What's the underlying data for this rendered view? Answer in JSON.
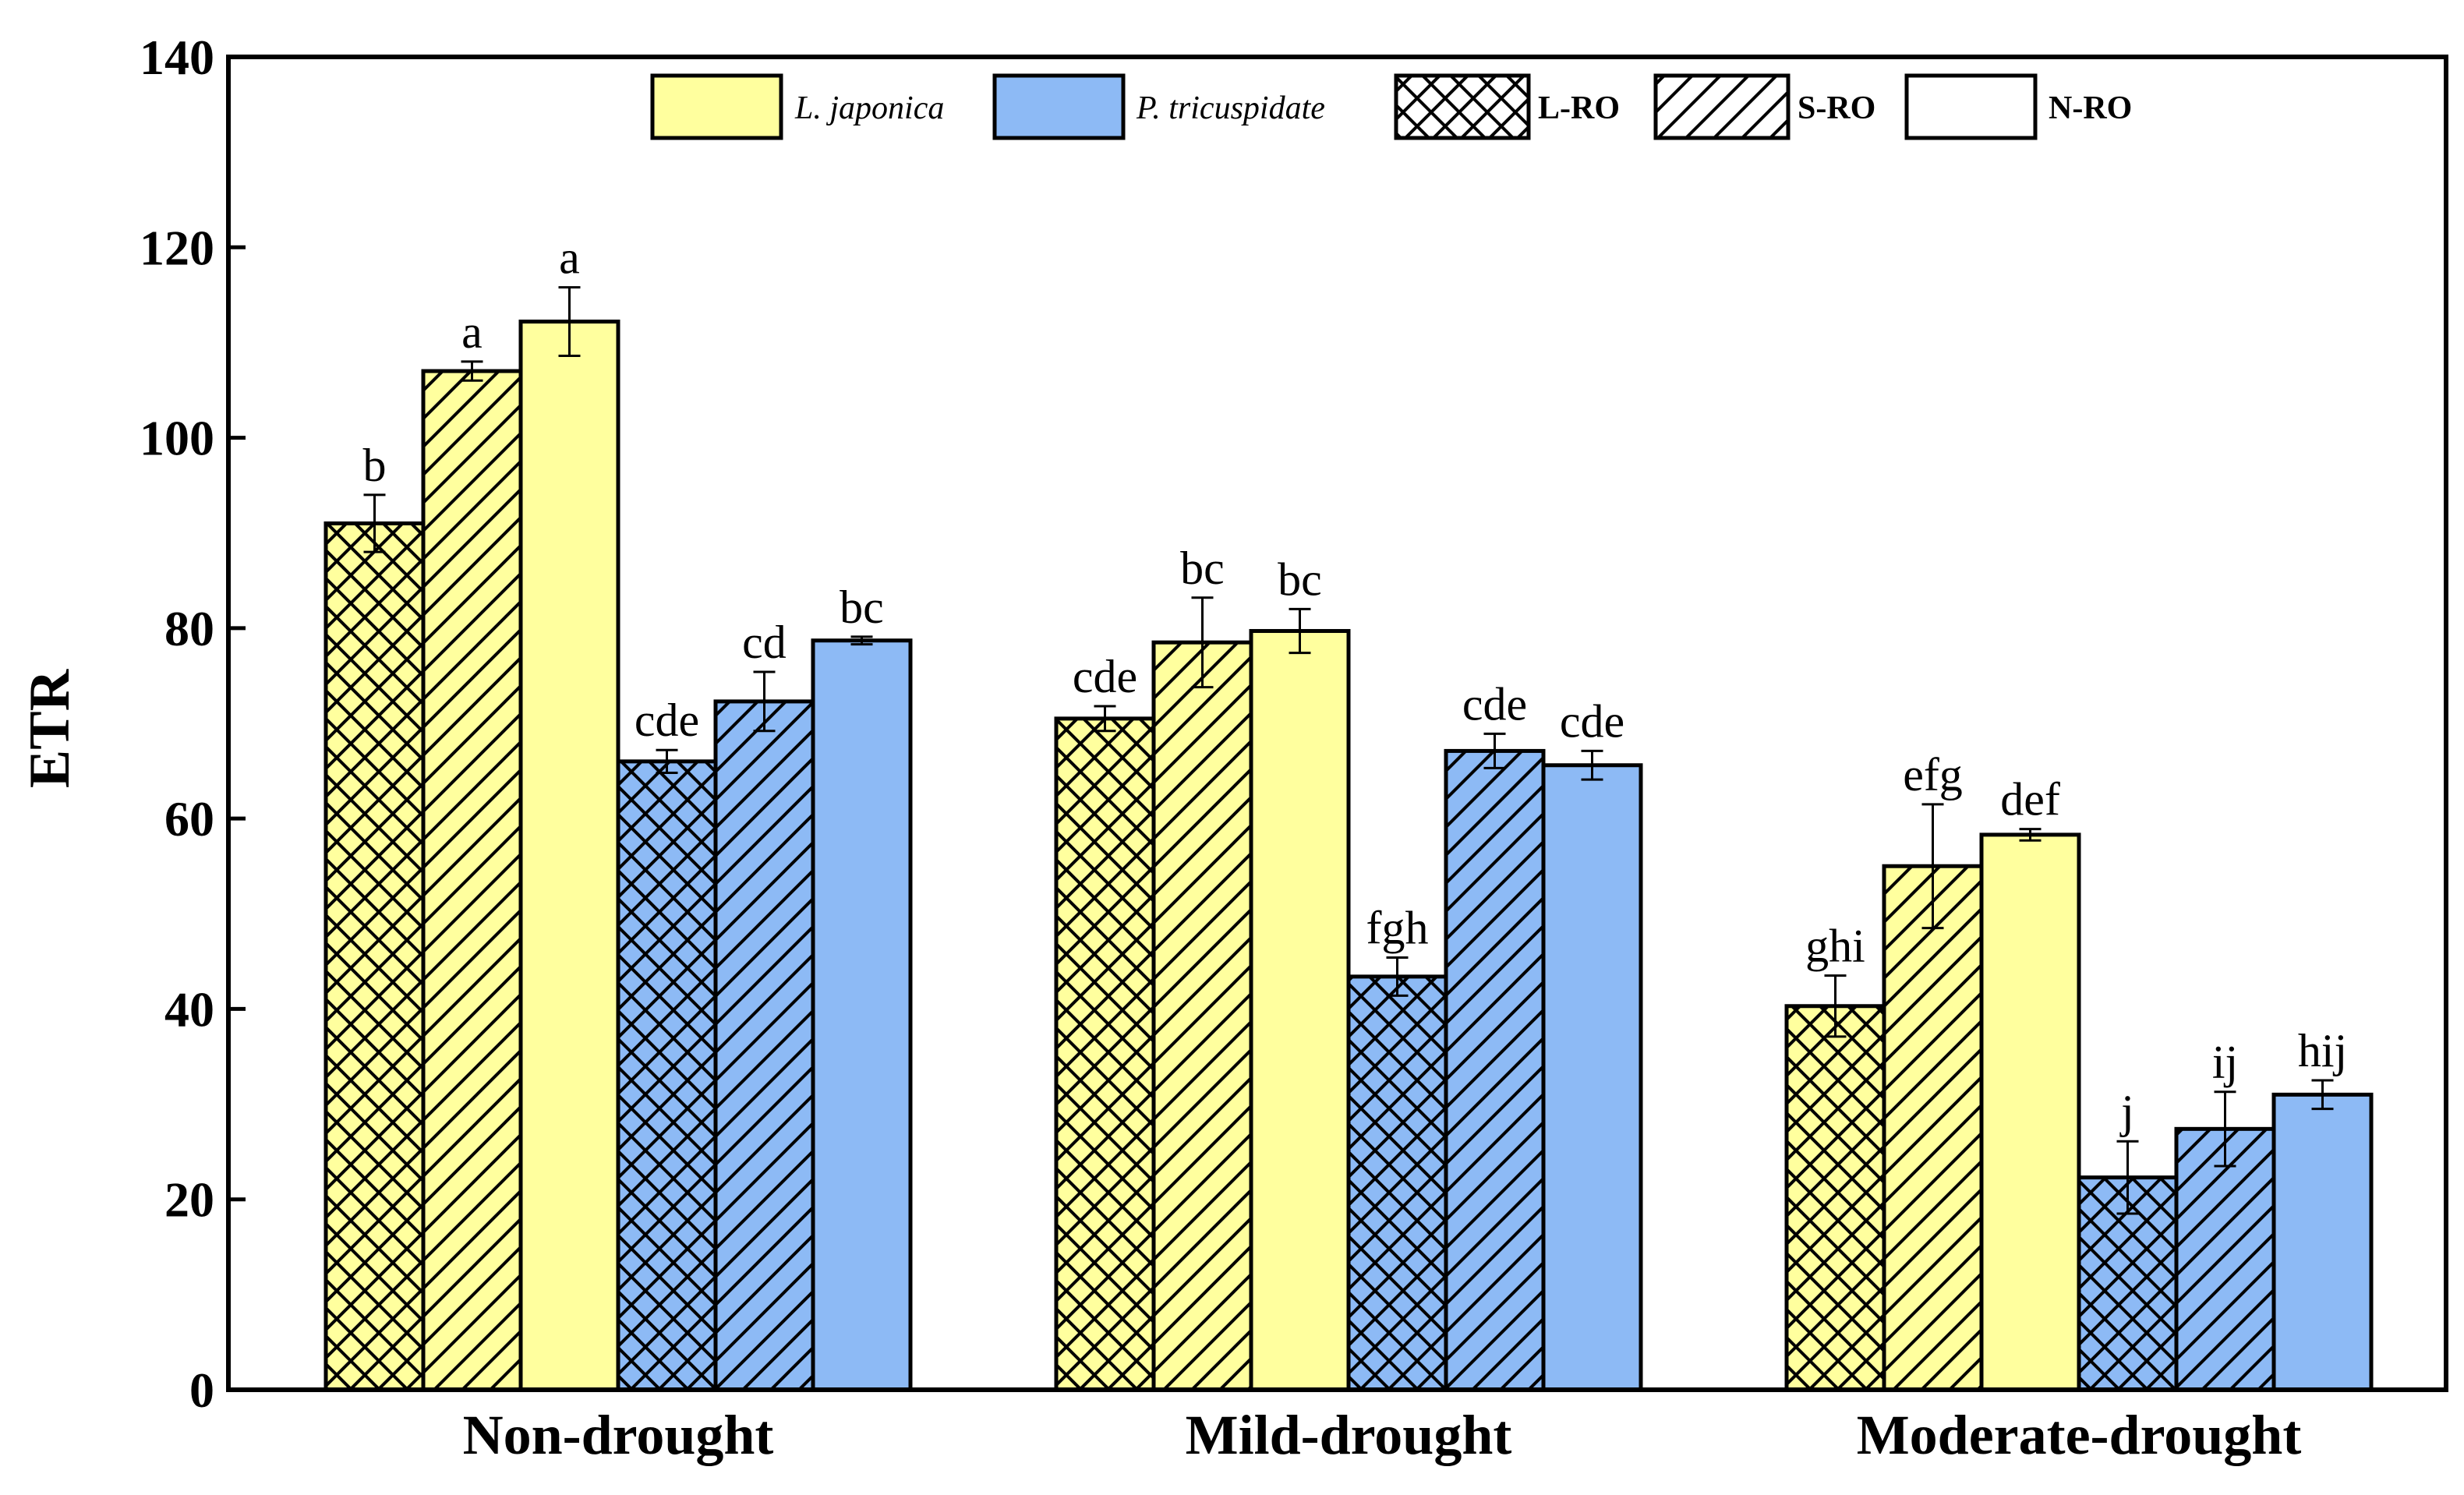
{
  "chart_data": {
    "type": "bar",
    "title": "",
    "xlabel": "",
    "ylabel": "ETR",
    "ylim": [
      0,
      140
    ],
    "yticks": [
      0,
      20,
      40,
      60,
      80,
      100,
      120,
      140
    ],
    "grid": false,
    "legend_position": "top",
    "categories": [
      "Non-drought",
      "Mild-drought",
      "Moderate-drought"
    ],
    "legend": [
      {
        "label": "L. japonica",
        "kind": "species",
        "fill": "#FFFF9E",
        "pattern": "solid"
      },
      {
        "label": "P. tricuspidate",
        "kind": "species",
        "fill": "#8DBAF5",
        "pattern": "solid"
      },
      {
        "label": "L-RO",
        "kind": "type",
        "fill": "#FFFFFF",
        "pattern": "crosshatch"
      },
      {
        "label": "S-RO",
        "kind": "type",
        "fill": "#FFFFFF",
        "pattern": "diagonal"
      },
      {
        "label": "N-RO",
        "kind": "type",
        "fill": "#FFFFFF",
        "pattern": "solid"
      }
    ],
    "series": [
      {
        "name": "L. japonica L-RO",
        "color": "#FFFF9E",
        "pattern": "crosshatch",
        "values": [
          91,
          70.5,
          40.3
        ],
        "errors": [
          3.0,
          1.3,
          3.2
        ],
        "labels": [
          "b",
          "cde",
          "ghi"
        ]
      },
      {
        "name": "L. japonica S-RO",
        "color": "#FFFF9E",
        "pattern": "diagonal",
        "values": [
          107,
          78.5,
          55
        ],
        "errors": [
          1.0,
          4.7,
          6.5
        ],
        "labels": [
          "a",
          "bc",
          "efg"
        ]
      },
      {
        "name": "L. japonica N-RO",
        "color": "#FFFF9E",
        "pattern": "solid",
        "values": [
          112.2,
          79.7,
          58.3
        ],
        "errors": [
          3.6,
          2.3,
          0.6
        ],
        "labels": [
          "a",
          "bc",
          "def"
        ]
      },
      {
        "name": "P. tricuspidate L-RO",
        "color": "#8DBAF5",
        "pattern": "crosshatch",
        "values": [
          66,
          43.4,
          22.3
        ],
        "errors": [
          1.2,
          2.0,
          3.8
        ],
        "labels": [
          "cde",
          "fgh",
          "j"
        ]
      },
      {
        "name": "P. tricuspidate S-RO",
        "color": "#8DBAF5",
        "pattern": "diagonal",
        "values": [
          72.3,
          67.1,
          27.4
        ],
        "errors": [
          3.1,
          1.8,
          3.9
        ],
        "labels": [
          "cd",
          "cde",
          "ij"
        ]
      },
      {
        "name": "P. tricuspidate N-RO",
        "color": "#8DBAF5",
        "pattern": "solid",
        "values": [
          78.7,
          65.6,
          31
        ],
        "errors": [
          0.4,
          1.5,
          1.5
        ],
        "labels": [
          "bc",
          "cde",
          "hij"
        ]
      }
    ]
  }
}
